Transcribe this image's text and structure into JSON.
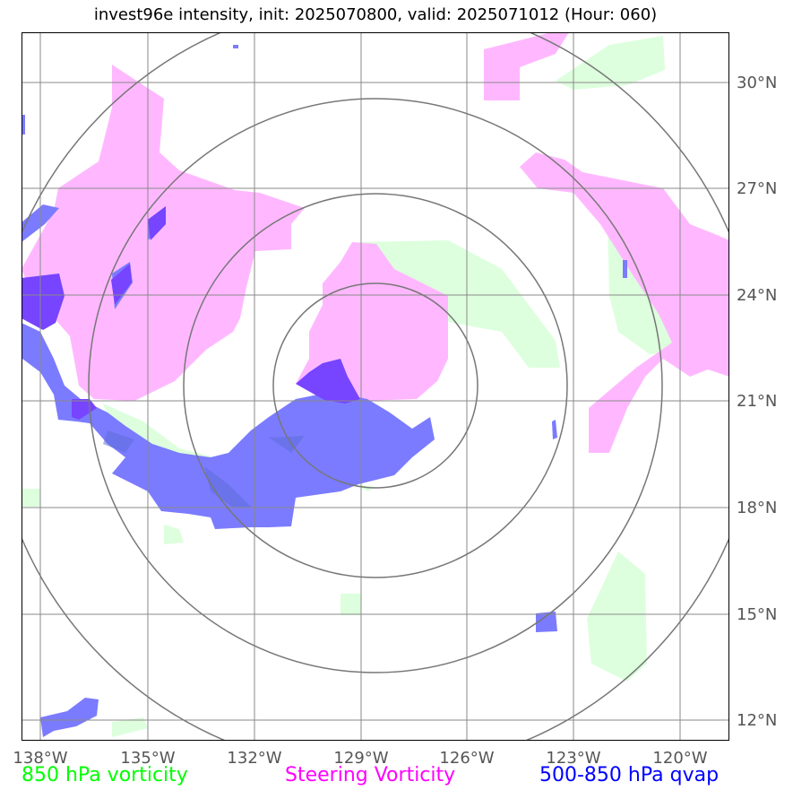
{
  "title": "invest96e intensity, init: 2025070800, valid: 2025071012 (Hour: 060)",
  "longitudes": [
    "138°W",
    "135°W",
    "132°W",
    "129°W",
    "126°W",
    "123°W",
    "120°W"
  ],
  "latitudes": [
    "30°N",
    "27°N",
    "24°N",
    "21°N",
    "18°N",
    "15°N",
    "12°N"
  ],
  "legend": [
    {
      "label": "850 hPa vorticity",
      "color": "#00ff00"
    },
    {
      "label": "Steering Vorticity",
      "color": "#ff00ff"
    },
    {
      "label": "500-850 hPa qvap",
      "color": "#0000ff"
    }
  ],
  "colors": {
    "vorticity_850": "#ddffdd",
    "steering_vorticity": "#ffb8ff",
    "qvap": "#7b7bff",
    "overlap": "#7744ff",
    "grid": "#8a8a8a",
    "rings": "#777777"
  }
}
